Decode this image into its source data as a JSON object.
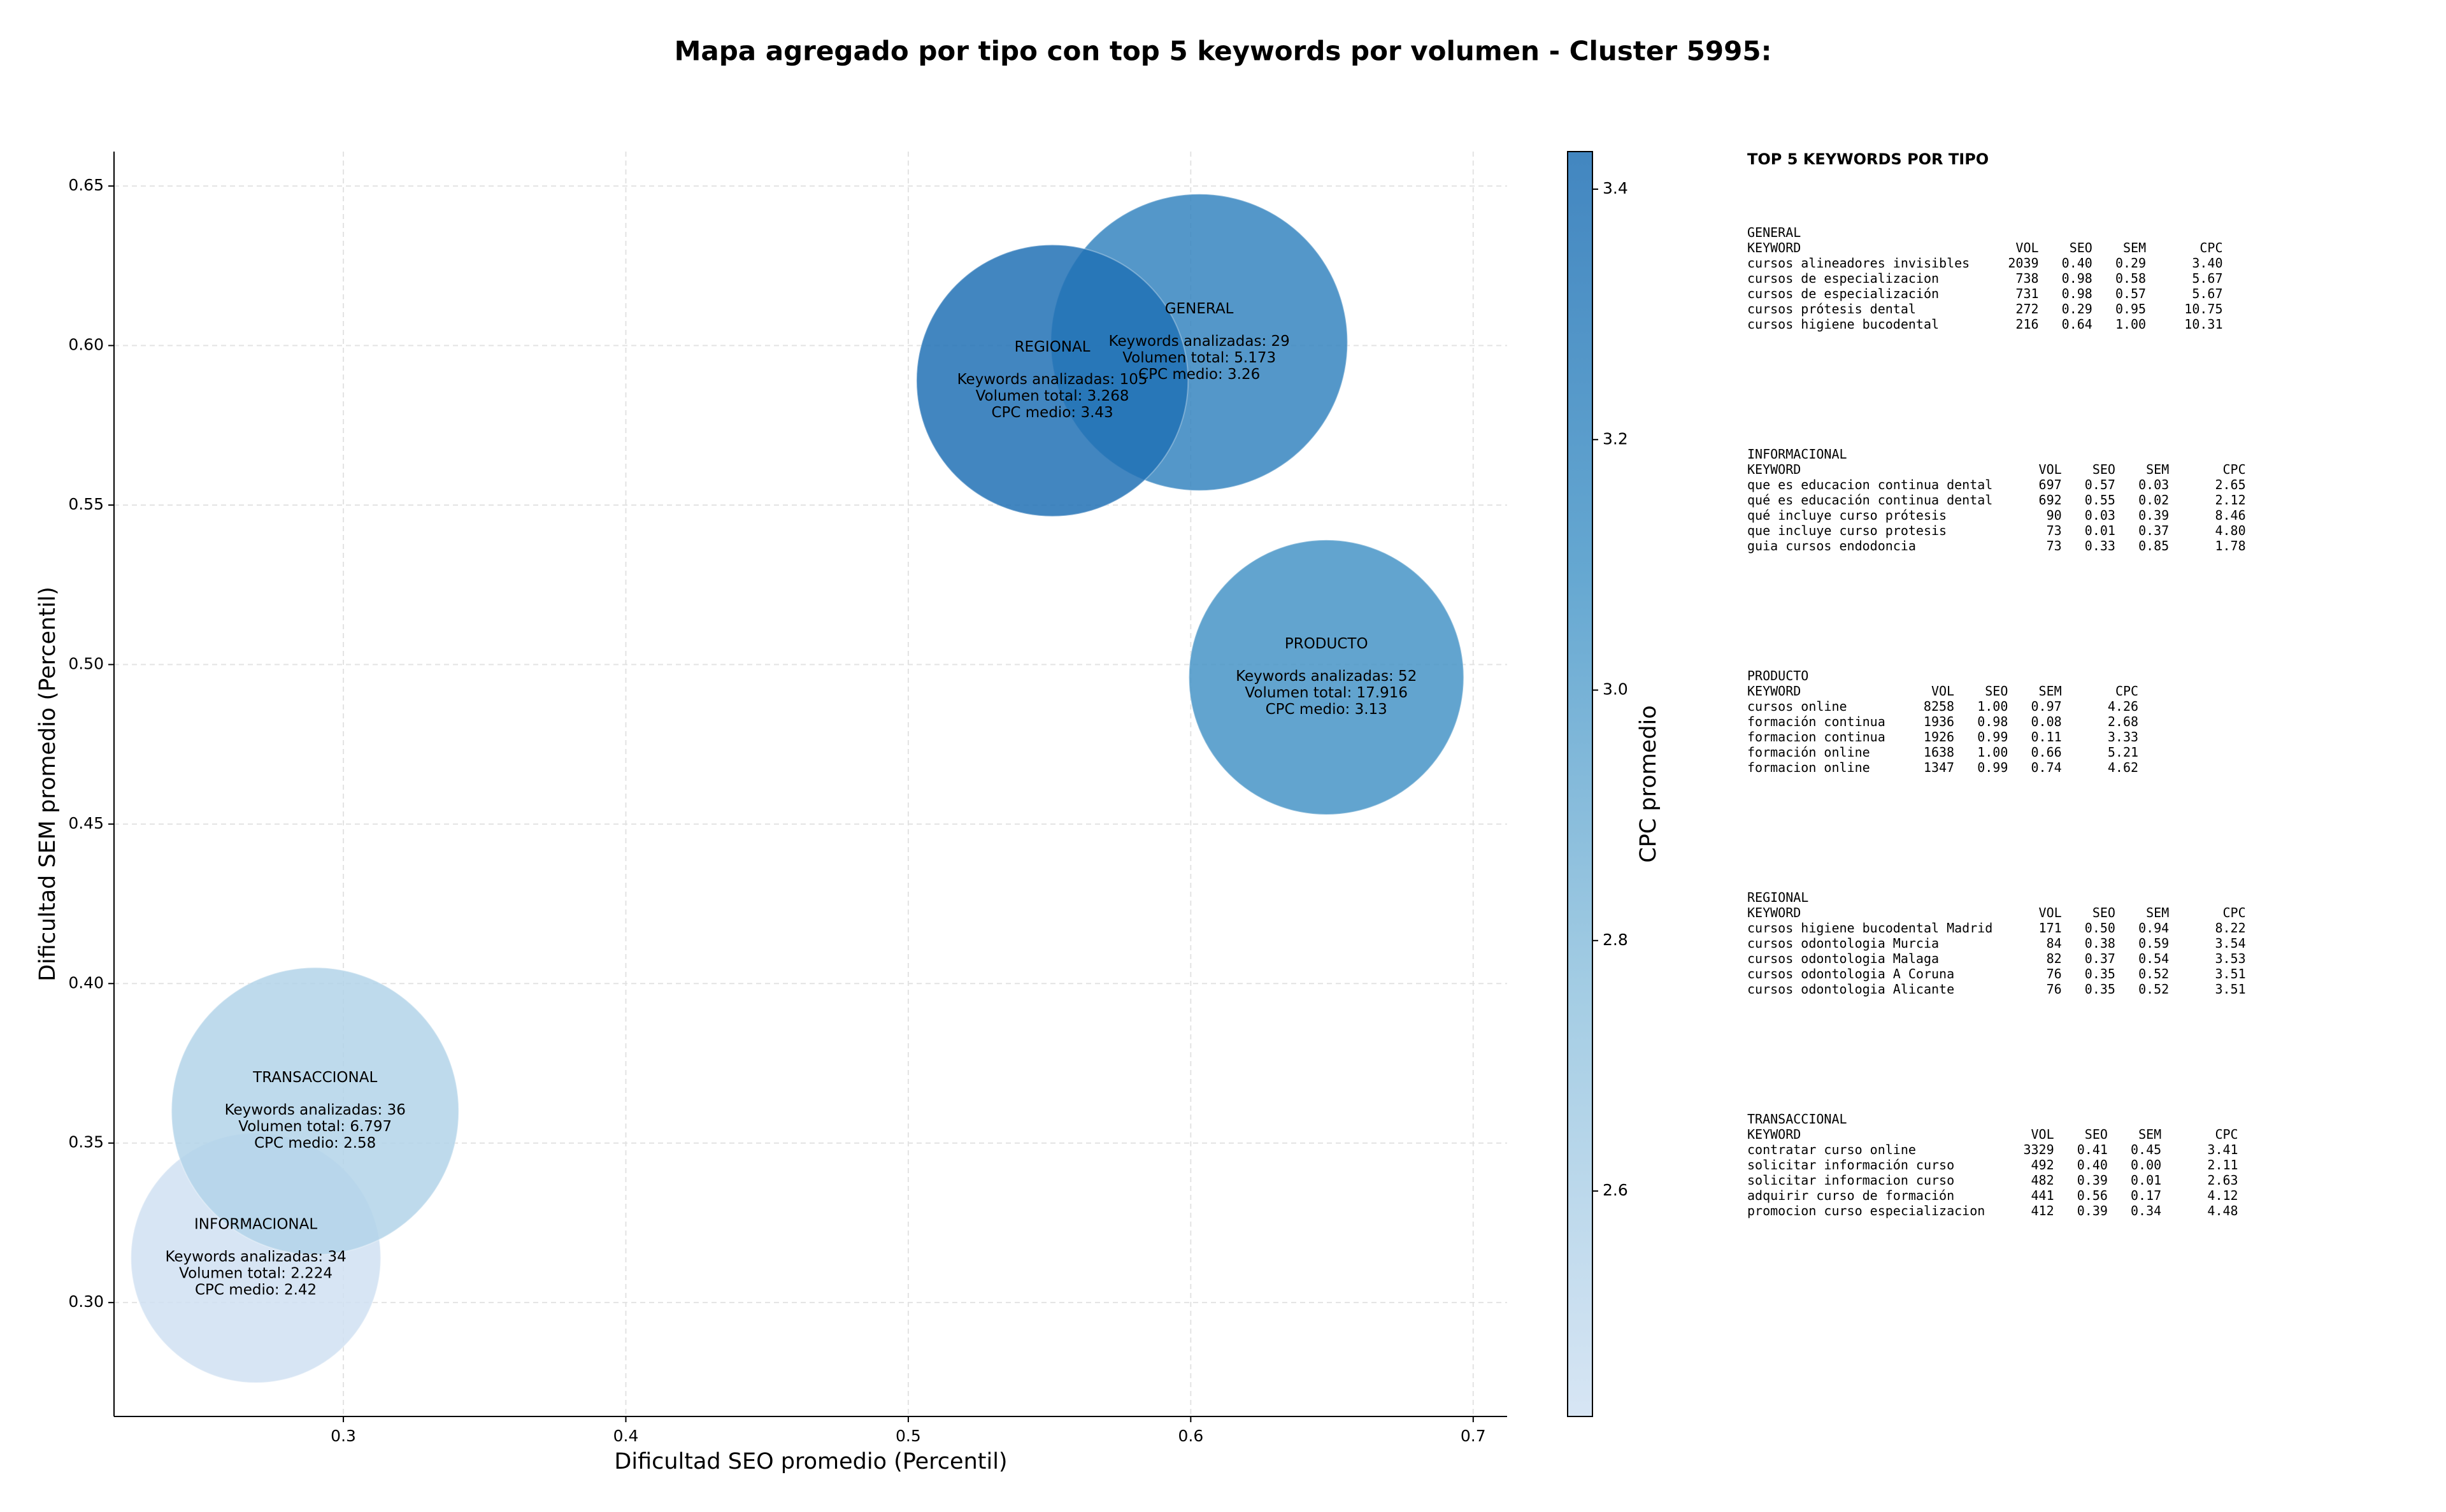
{
  "chart_data": {
    "type": "bubble",
    "title": "Mapa agregado por tipo con top 5 keywords por volumen - Cluster 5995:",
    "x_label": "Dificultad SEO promedio (Percentil)",
    "y_label": "Dificultad SEM promedio (Percentil)",
    "colorbar_label": "CPC promedio",
    "categories": [
      "GENERAL",
      "INFORMACIONAL",
      "PRODUCTO",
      "REGIONAL",
      "TRANSACCIONAL"
    ],
    "x": [
      0.603,
      0.269,
      0.648,
      0.551,
      0.29
    ],
    "y": [
      0.601,
      0.314,
      0.496,
      0.589,
      0.36
    ],
    "sizes": [
      95,
      80,
      88,
      87,
      92
    ],
    "cpc": [
      3.26,
      2.42,
      3.13,
      3.43,
      2.58
    ],
    "annotations": [
      [
        "Keywords analizadas: 29",
        "Volumen total: 5.173",
        "CPC medio: 3.26"
      ],
      [
        "Keywords analizadas: 34",
        "Volumen total: 2.224",
        "CPC medio: 2.42"
      ],
      [
        "Keywords analizadas: 52",
        "Volumen total: 17.916",
        "CPC medio: 3.13"
      ],
      [
        "Keywords analizadas: 105",
        "Volumen total: 3.268",
        "CPC medio: 3.43"
      ],
      [
        "Keywords analizadas: 36",
        "Volumen total: 6.797",
        "CPC medio: 2.58"
      ]
    ],
    "xlim": [
      0.2188,
      0.712
    ],
    "ylim": [
      0.2643,
      0.6608
    ],
    "xticks": [
      0.3,
      0.4,
      0.5,
      0.6,
      0.7
    ],
    "yticks": [
      {
        "value": 0.3,
        "label": "0.30"
      },
      0.35,
      {
        "value": 0.4,
        "label": "0.40"
      },
      0.45,
      {
        "value": 0.5,
        "label": "0.50"
      },
      0.55,
      {
        "value": 0.6,
        "label": "0.60"
      },
      0.65
    ],
    "clim": [
      2.42,
      3.43
    ],
    "cticks": [
      2.6,
      2.8,
      {
        "value": 3.0,
        "label": "3.0"
      },
      3.2,
      3.4
    ],
    "colormap": [
      "#d0e1f2",
      "#94c4df",
      "#4a98c9",
      "#2171b5"
    ],
    "alpha": 0.85,
    "grid": true
  },
  "panel": {
    "title": "TOP 5 KEYWORDS POR TIPO",
    "header": [
      "KEYWORD",
      "VOL",
      "SEO",
      "SEM",
      "CPC"
    ],
    "sections": [
      {
        "name": "GENERAL",
        "rows": [
          [
            "cursos alineadores invisibles",
            "2039",
            "0.40",
            "0.29",
            "3.40"
          ],
          [
            "cursos de especializacion",
            "738",
            "0.98",
            "0.58",
            "5.67"
          ],
          [
            "cursos de especialización",
            "731",
            "0.98",
            "0.57",
            "5.67"
          ],
          [
            "cursos prótesis dental",
            "272",
            "0.29",
            "0.95",
            "10.75"
          ],
          [
            "cursos higiene bucodental",
            "216",
            "0.64",
            "1.00",
            "10.31"
          ]
        ]
      },
      {
        "name": "INFORMACIONAL",
        "rows": [
          [
            "que es educacion continua dental",
            "697",
            "0.57",
            "0.03",
            "2.65"
          ],
          [
            "qué es educación continua dental",
            "692",
            "0.55",
            "0.02",
            "2.12"
          ],
          [
            "qué incluye curso prótesis",
            "90",
            "0.03",
            "0.39",
            "8.46"
          ],
          [
            "que incluye curso protesis",
            "73",
            "0.01",
            "0.37",
            "4.80"
          ],
          [
            "guia cursos endodoncia",
            "73",
            "0.33",
            "0.85",
            "1.78"
          ]
        ]
      },
      {
        "name": "PRODUCTO",
        "rows": [
          [
            "cursos online",
            "8258",
            "1.00",
            "0.97",
            "4.26"
          ],
          [
            "formación continua",
            "1936",
            "0.98",
            "0.08",
            "2.68"
          ],
          [
            "formacion continua",
            "1926",
            "0.99",
            "0.11",
            "3.33"
          ],
          [
            "formación online",
            "1638",
            "1.00",
            "0.66",
            "5.21"
          ],
          [
            "formacion online",
            "1347",
            "0.99",
            "0.74",
            "4.62"
          ]
        ]
      },
      {
        "name": "REGIONAL",
        "rows": [
          [
            "cursos higiene bucodental Madrid",
            "171",
            "0.50",
            "0.94",
            "8.22"
          ],
          [
            "cursos odontologia Murcia",
            "84",
            "0.38",
            "0.59",
            "3.54"
          ],
          [
            "cursos odontologia Malaga",
            "82",
            "0.37",
            "0.54",
            "3.53"
          ],
          [
            "cursos odontologia A Coruna",
            "76",
            "0.35",
            "0.52",
            "3.51"
          ],
          [
            "cursos odontologia Alicante",
            "76",
            "0.35",
            "0.52",
            "3.51"
          ]
        ]
      },
      {
        "name": "TRANSACCIONAL",
        "rows": [
          [
            "contratar curso online",
            "3329",
            "0.41",
            "0.45",
            "3.41"
          ],
          [
            "solicitar información curso",
            "492",
            "0.40",
            "0.00",
            "2.11"
          ],
          [
            "solicitar informacion curso",
            "482",
            "0.39",
            "0.01",
            "2.63"
          ],
          [
            "adquirir curso de formación",
            "441",
            "0.56",
            "0.17",
            "4.12"
          ],
          [
            "promocion curso especializacion",
            "412",
            "0.39",
            "0.34",
            "4.48"
          ]
        ]
      }
    ]
  }
}
